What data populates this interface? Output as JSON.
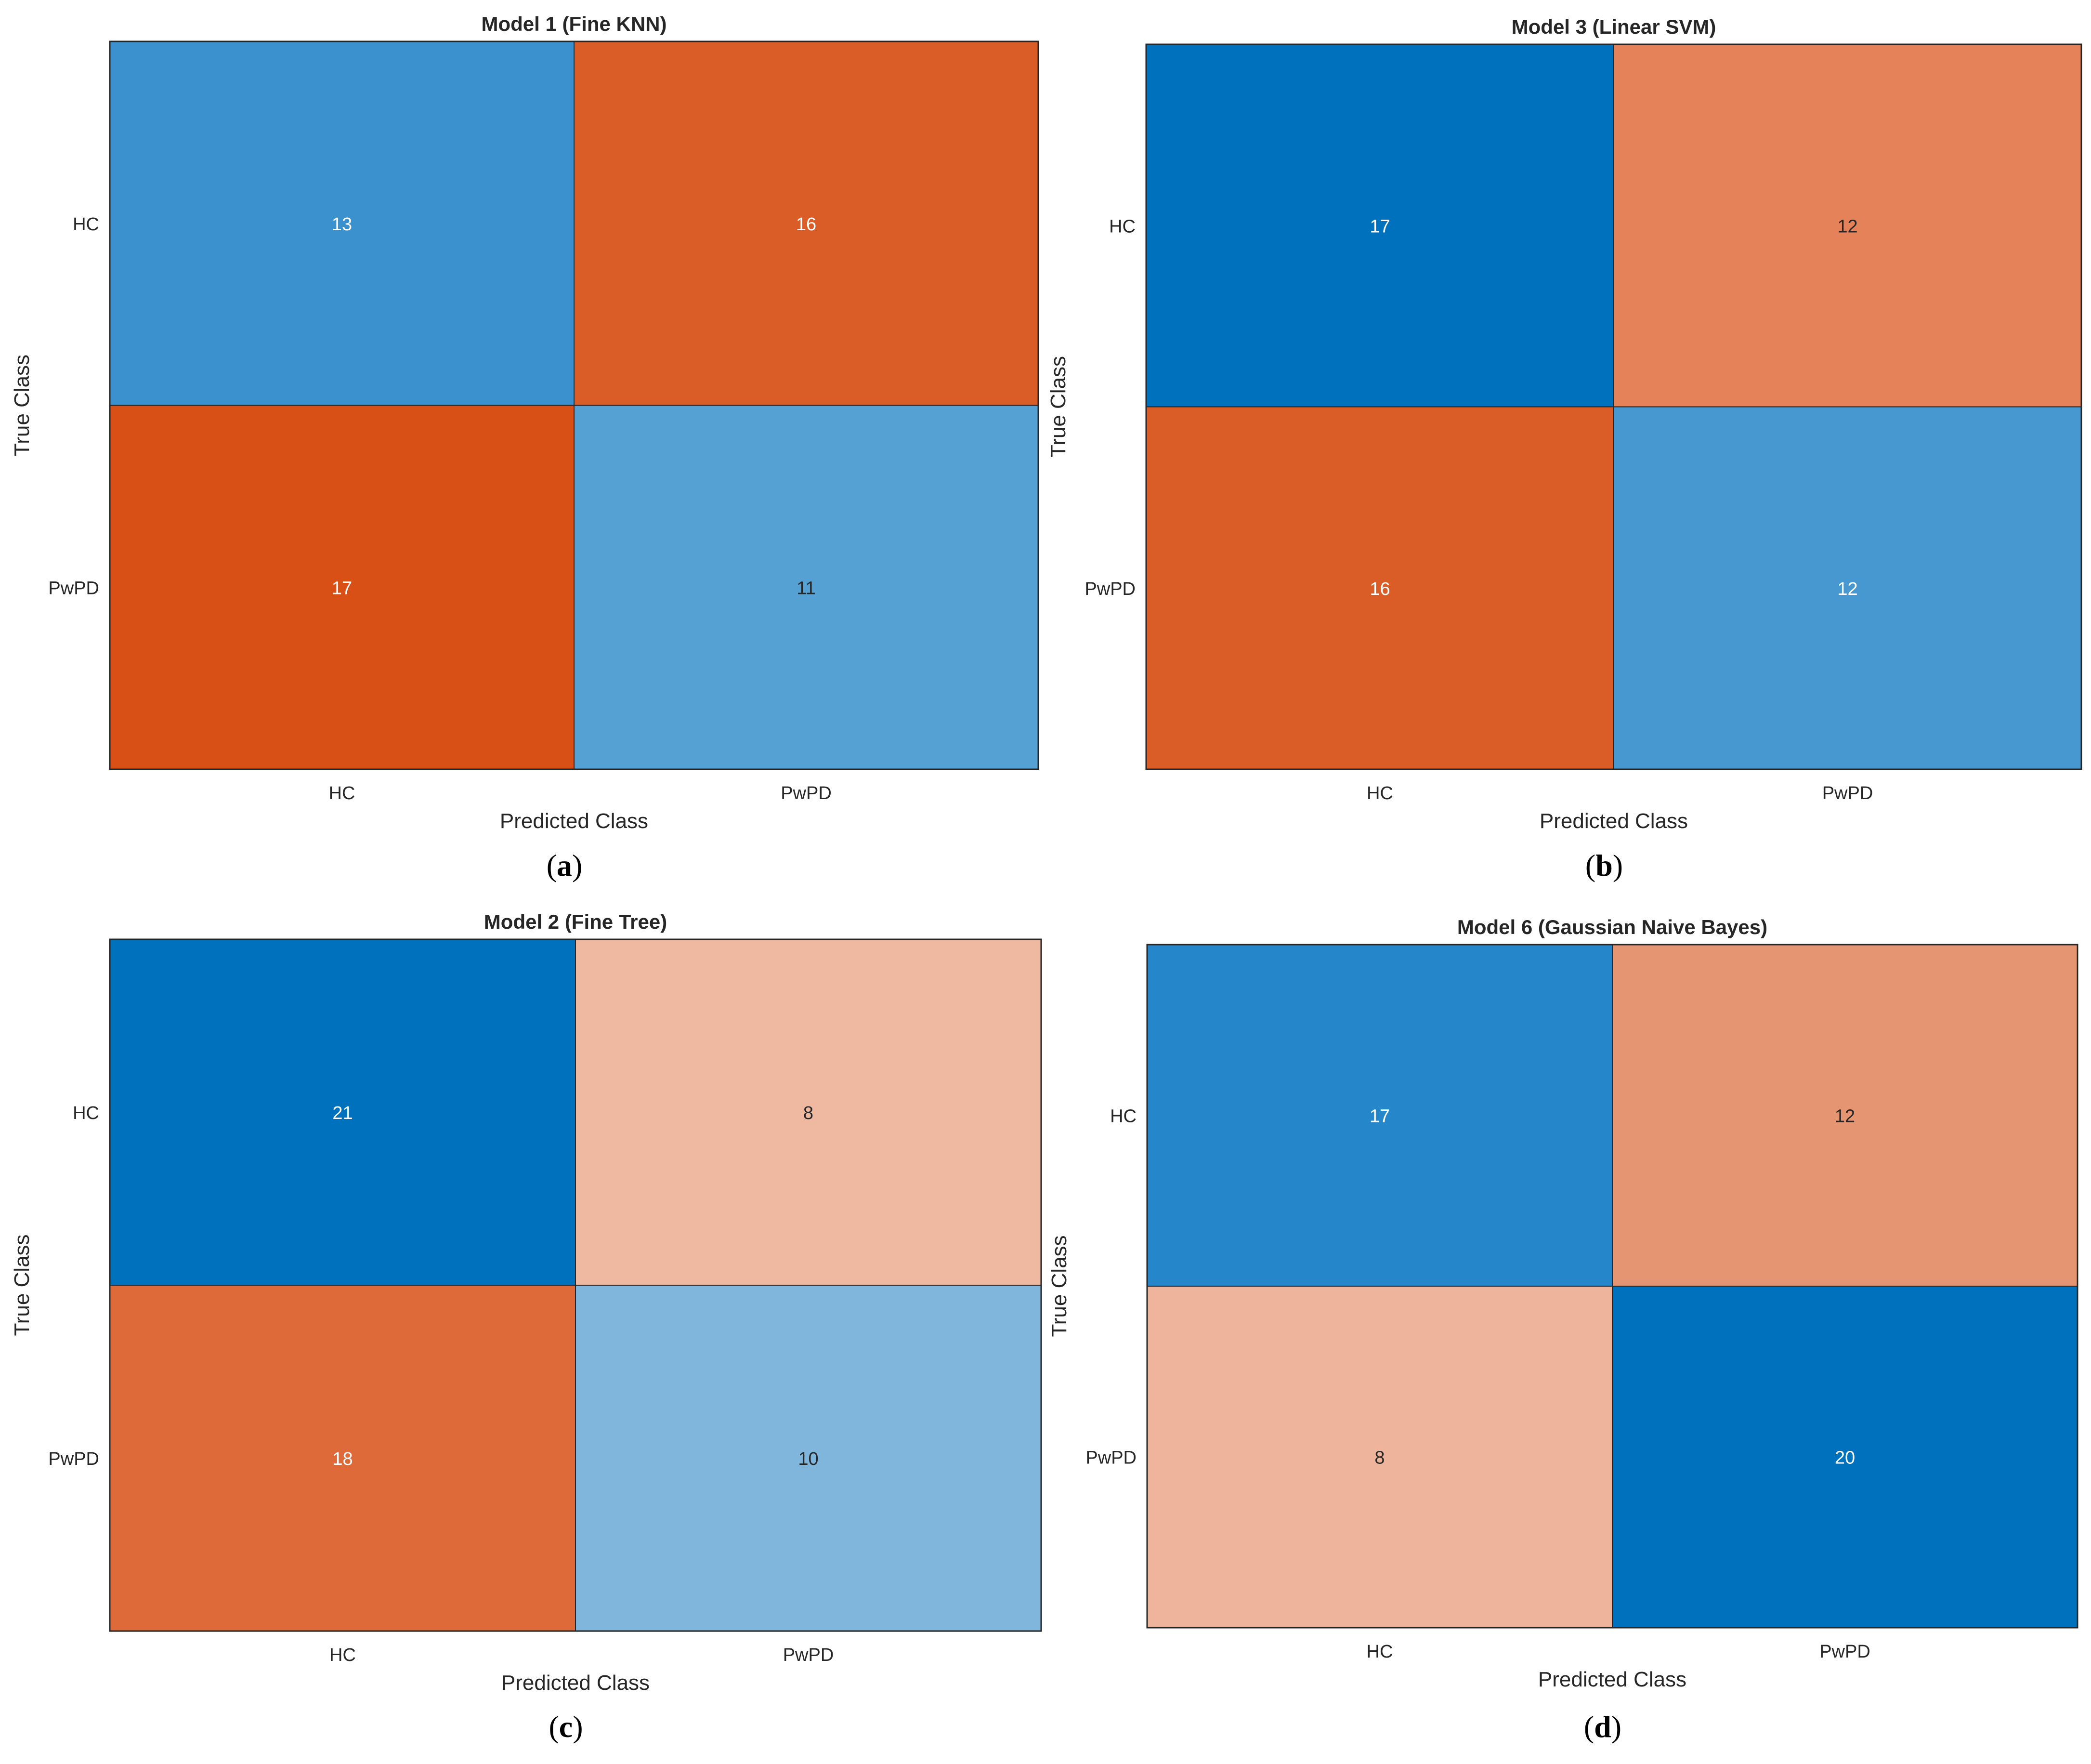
{
  "chart_data": [
    {
      "type": "heatmap",
      "panel_label": "a",
      "title": "Model 1 (Fine KNN)",
      "xlabel": "Predicted Class",
      "ylabel": "True Class",
      "rows": [
        "HC",
        "PwPD"
      ],
      "cols": [
        "HC",
        "PwPD"
      ],
      "values": [
        [
          13,
          16
        ],
        [
          17,
          11
        ]
      ],
      "cell_colors": [
        [
          "#3A91CD",
          "#DA5C27"
        ],
        [
          "#D85016",
          "#55A1D4"
        ]
      ]
    },
    {
      "type": "heatmap",
      "panel_label": "b",
      "title": "Model 3 (Linear SVM)",
      "xlabel": "Predicted Class",
      "ylabel": "True Class",
      "rows": [
        "HC",
        "PwPD"
      ],
      "cols": [
        "HC",
        "PwPD"
      ],
      "values": [
        [
          17,
          12
        ],
        [
          16,
          12
        ]
      ],
      "cell_colors": [
        [
          "#0072BD",
          "#E5825A"
        ],
        [
          "#DA5C27",
          "#4798D0"
        ]
      ]
    },
    {
      "type": "heatmap",
      "panel_label": "c",
      "title": "Model 2 (Fine Tree)",
      "xlabel": "Predicted Class",
      "ylabel": "True Class",
      "rows": [
        "HC",
        "PwPD"
      ],
      "cols": [
        "HC",
        "PwPD"
      ],
      "values": [
        [
          21,
          8
        ],
        [
          18,
          10
        ]
      ],
      "cell_colors": [
        [
          "#0072BD",
          "#EEB8A1"
        ],
        [
          "#DE6A39",
          "#80B6DC"
        ]
      ]
    },
    {
      "type": "heatmap",
      "panel_label": "d",
      "title": "Model 6 (Gaussian Naive Bayes)",
      "xlabel": "Predicted Class",
      "ylabel": "True Class",
      "rows": [
        "HC",
        "PwPD"
      ],
      "cols": [
        "HC",
        "PwPD"
      ],
      "values": [
        [
          17,
          12
        ],
        [
          8,
          20
        ]
      ],
      "cell_colors": [
        [
          "#2586CA",
          "#E69572"
        ],
        [
          "#EFB49C",
          "#0072BD"
        ]
      ]
    }
  ]
}
